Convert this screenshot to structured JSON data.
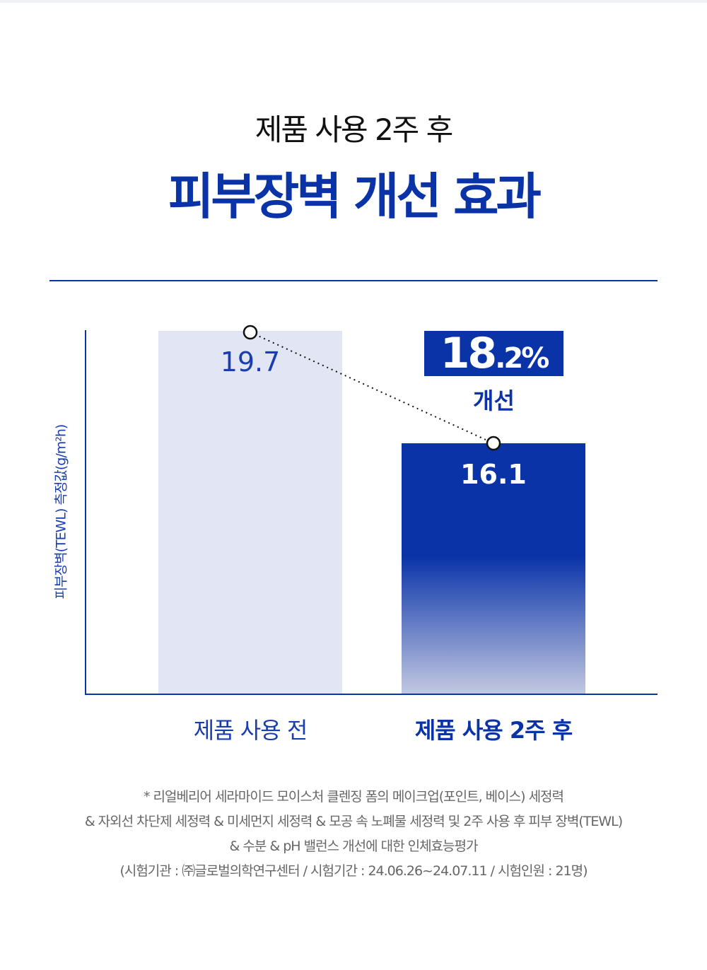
{
  "header": {
    "subtitle": "제품 사용 2주 후",
    "title": "피부장벽 개선 효과"
  },
  "chart_data": {
    "type": "bar",
    "categories": [
      "제품 사용 전",
      "제품 사용 2주 후"
    ],
    "values": [
      19.7,
      16.1
    ],
    "value_labels": [
      "19.7",
      "16.1"
    ],
    "ylabel": "피부장벽(TEWL) 측정값(g/m²h)",
    "ylim": [
      8.06,
      19.7
    ],
    "grid": false,
    "annotation": {
      "value": "18.2",
      "unit": ".2%",
      "main": "18",
      "label": "개선"
    },
    "colors": {
      "before": "#e2e5f3",
      "after": "#0a33a8",
      "axis": "#0a33a8"
    }
  },
  "footnote": [
    "* 리얼베리어 세라마이드 모이스처 클렌징 폼의 메이크업(포인트, 베이스) 세정력",
    "& 자외선 차단제 세정력 & 미세먼지 세정력 & 모공 속 노폐물 세정력 및 2주 사용 후 피부 장벽(TEWL)",
    "& 수분 & pH 밸런스 개선에 대한 인체효능평가",
    "(시험기관 : ㈜글로벌의학연구센터 / 시험기간 : 24.06.26~24.07.11 / 시험인원 : 21명)"
  ]
}
